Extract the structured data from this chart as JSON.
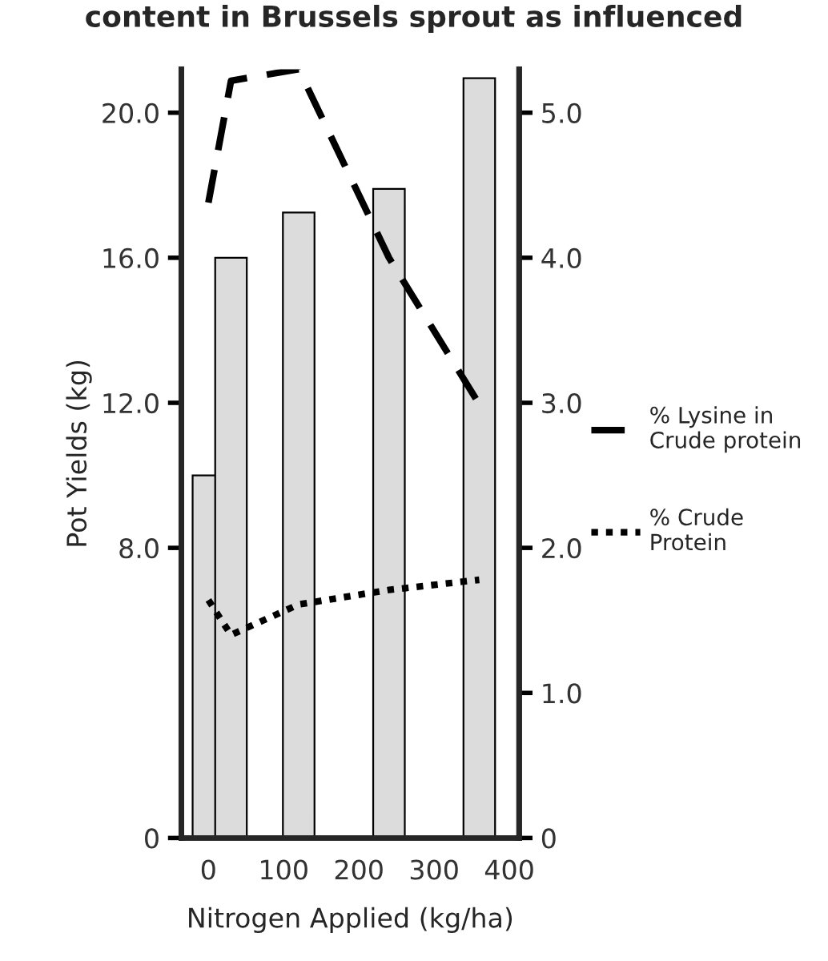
{
  "chart_data": {
    "type": "bar",
    "title": "content in Brussels sprout as influenced",
    "xlabel": "Nitrogen Applied (kg/ha)",
    "ylabel": "Pot Yields (kg)",
    "x": [
      0,
      30,
      120,
      240,
      360
    ],
    "series": [
      {
        "color": "#dcdcdc",
        "values": [
          10.0,
          16.0,
          17.25,
          17.9,
          20.95
        ]
      },
      {
        "type": "line",
        "name": "% Lysine in\nCrude protein",
        "color": "#000000",
        "axis": "y2",
        "line_style": "dashed",
        "values": [
          4.38,
          5.22,
          5.3,
          4.0,
          2.99
        ]
      },
      {
        "type": "line",
        "name": "% Crude\nProtein",
        "color": "#000000",
        "axis": "y2",
        "line_style": "dotted",
        "values": [
          1.64,
          1.4,
          1.61,
          1.71,
          1.78
        ]
      }
    ],
    "xlim": [
      -36,
      413
    ],
    "xticks": [
      0,
      100,
      200,
      300,
      400
    ],
    "ylim": [
      0,
      21.2
    ],
    "yticks": [
      {
        "value": 0,
        "label": "0"
      },
      {
        "value": 8,
        "label": "8.0"
      },
      {
        "value": 12,
        "label": "12.0"
      },
      {
        "value": 16,
        "label": "16.0"
      },
      {
        "value": 20,
        "label": "20.0"
      }
    ],
    "y2lim": [
      0,
      5.3
    ],
    "y2ticks": [
      {
        "value": 0,
        "label": "0"
      },
      {
        "value": 1,
        "label": "1.0"
      },
      {
        "value": 2,
        "label": "2.0"
      },
      {
        "value": 3,
        "label": "3.0"
      },
      {
        "value": 4,
        "label": "4.0"
      },
      {
        "value": 5,
        "label": "5.0"
      }
    ],
    "grid": false,
    "legend": "right"
  }
}
